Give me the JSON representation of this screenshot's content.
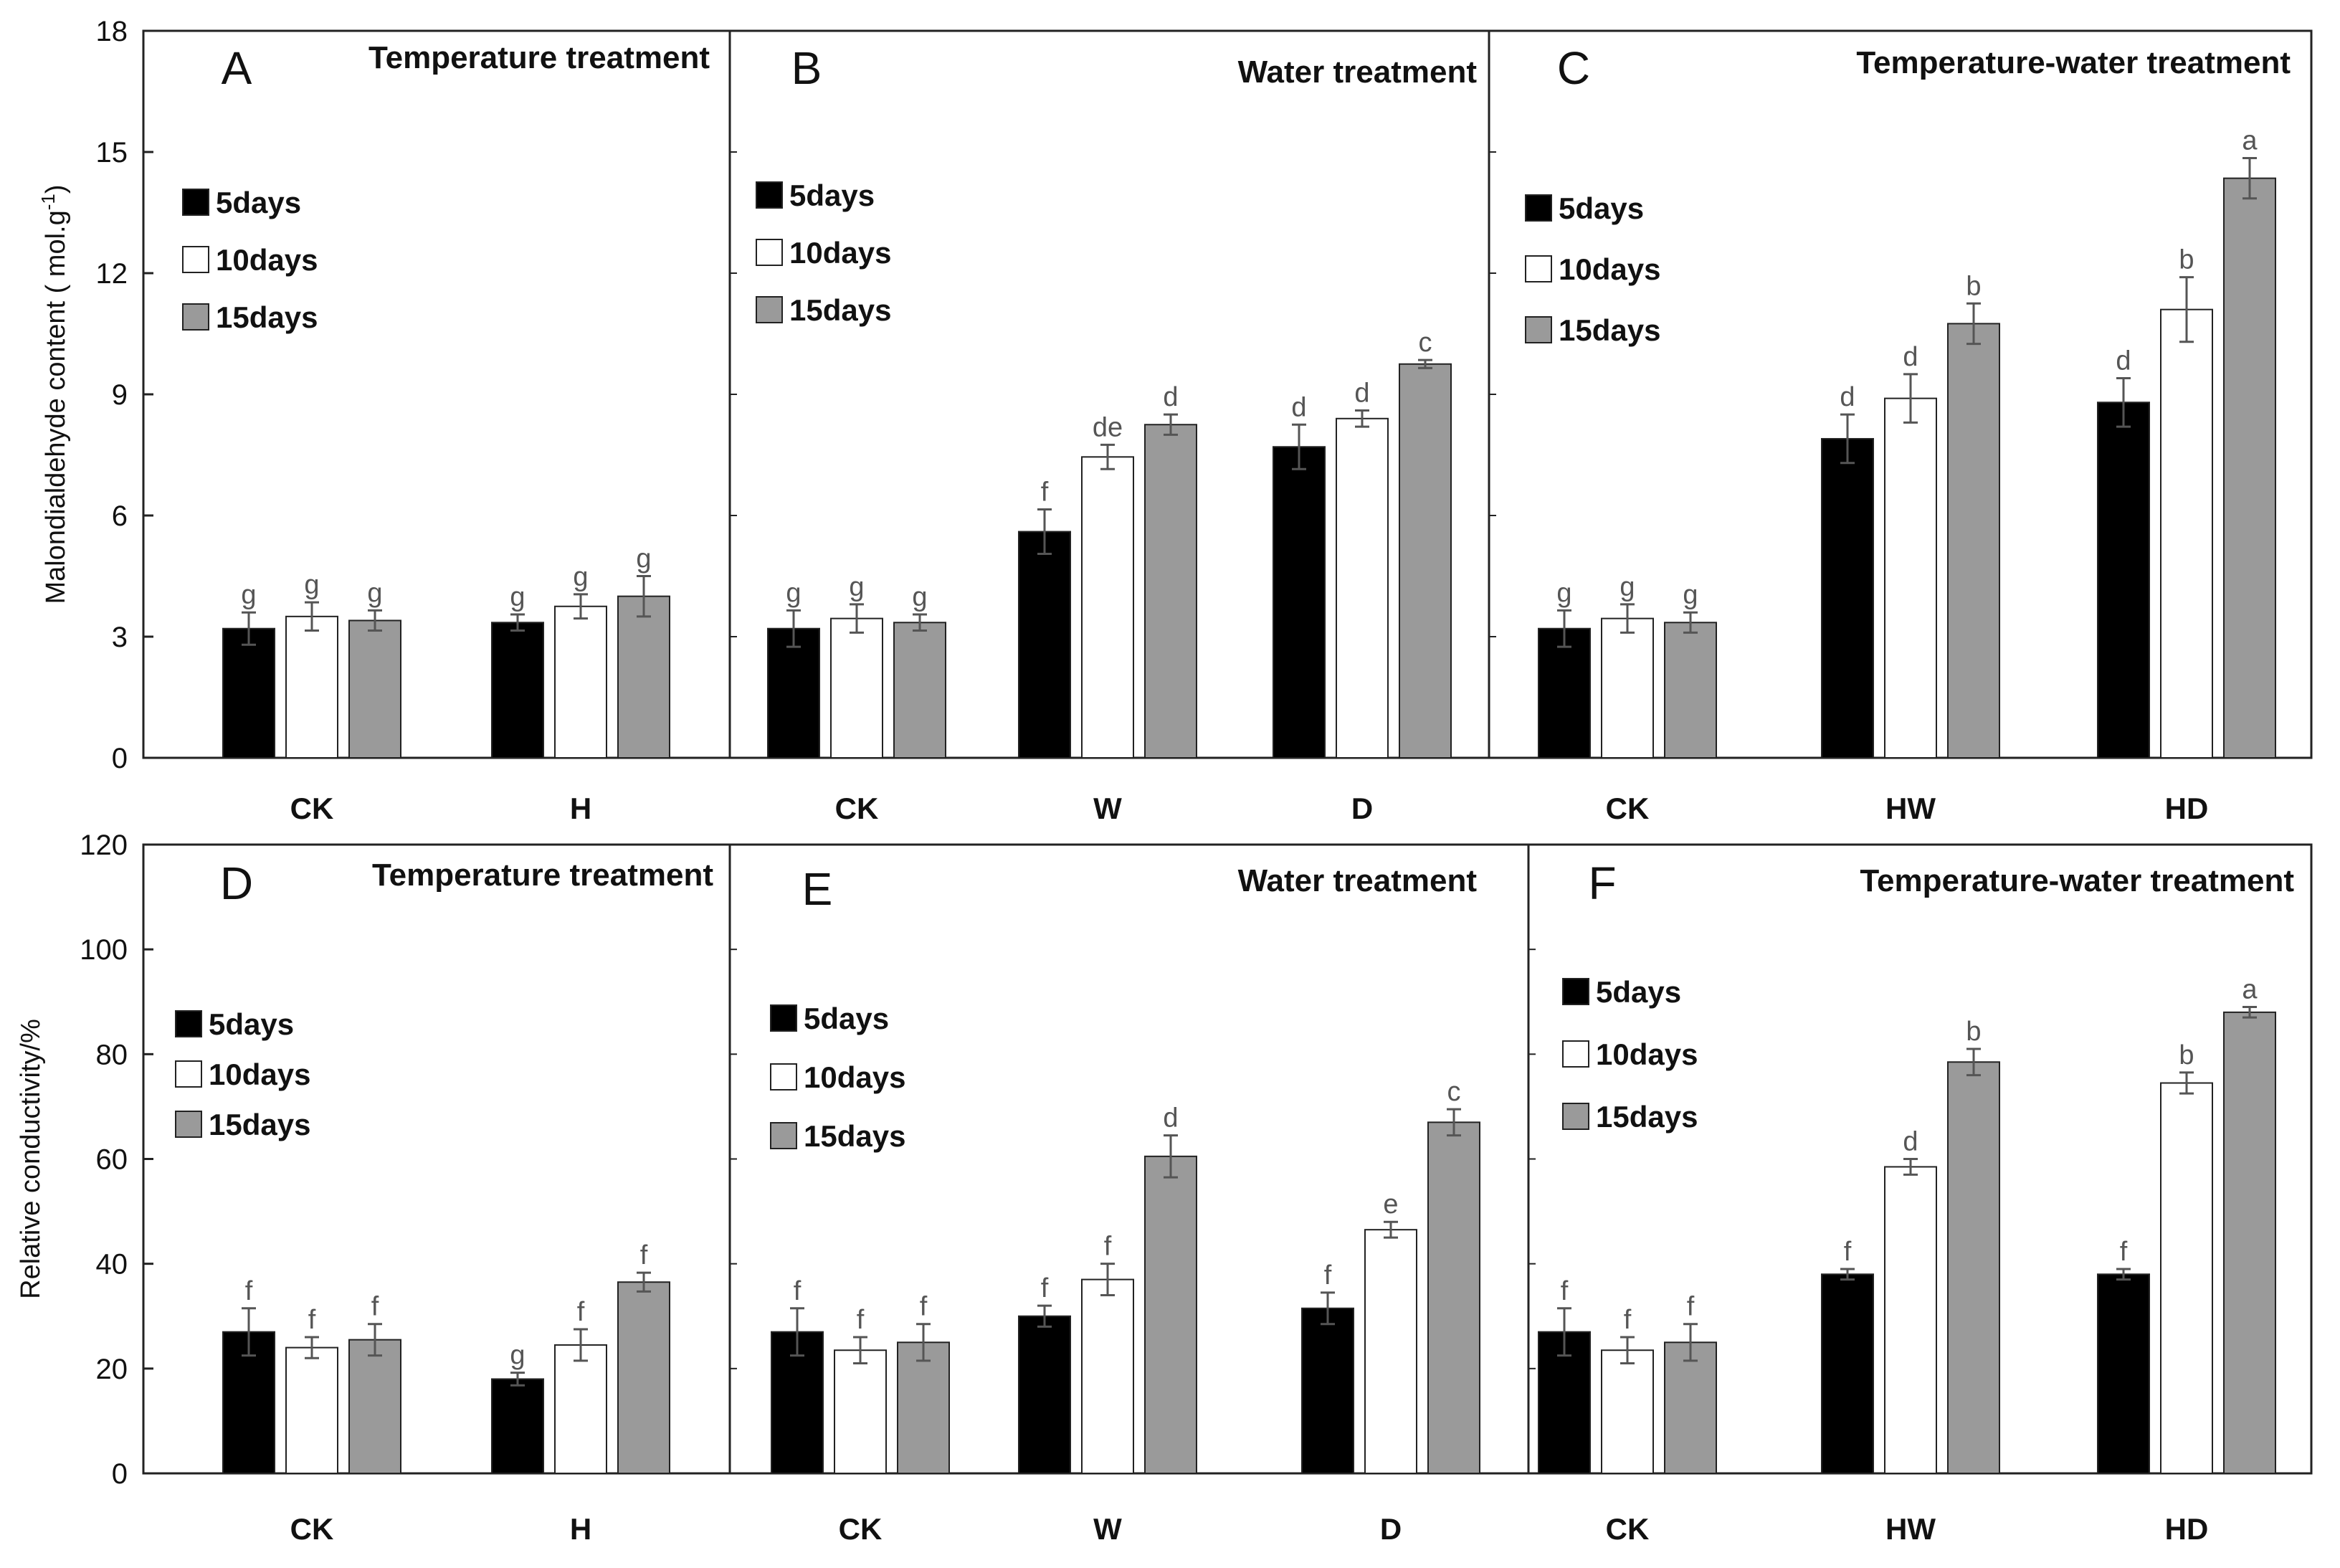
{
  "colors": {
    "5days": "#000000",
    "10days": "#ffffff",
    "15days": "#9a9a9a",
    "error": "#555555",
    "sig": "#555555"
  },
  "legend": [
    "5days",
    "10days",
    "15days"
  ],
  "chart_data": [
    {
      "type": "bar",
      "panel": "A",
      "row": "top",
      "title": "Temperature treatment",
      "ylabel": "Malondialdehyde content ( mol.g-1)",
      "ylabel_main": "Malondialdehyde content ( mol.g",
      "ylabel_sup": "-1",
      "ylabel_end": ")",
      "ylim": [
        0,
        18
      ],
      "yticks": [
        "0",
        "3",
        "6",
        "9",
        "12",
        "15",
        "18"
      ],
      "categories": [
        "CK",
        "H"
      ],
      "series": [
        {
          "name": "5days",
          "values": [
            3.2,
            3.35
          ],
          "errors": [
            0.4,
            0.2
          ],
          "labels": [
            "g",
            "g"
          ]
        },
        {
          "name": "10days",
          "values": [
            3.5,
            3.75
          ],
          "errors": [
            0.35,
            0.3
          ],
          "labels": [
            "g",
            "g"
          ]
        },
        {
          "name": "15days",
          "values": [
            3.4,
            4.0
          ],
          "errors": [
            0.25,
            0.5
          ],
          "labels": [
            "g",
            "g"
          ]
        }
      ]
    },
    {
      "type": "bar",
      "panel": "B",
      "row": "top",
      "title": "Water treatment",
      "ylim": [
        0,
        18
      ],
      "categories": [
        "CK",
        "W",
        "D"
      ],
      "series": [
        {
          "name": "5days",
          "values": [
            3.2,
            5.6,
            7.7
          ],
          "errors": [
            0.45,
            0.55,
            0.55
          ],
          "labels": [
            "g",
            "f",
            "d"
          ]
        },
        {
          "name": "10days",
          "values": [
            3.45,
            7.45,
            8.4
          ],
          "errors": [
            0.35,
            0.3,
            0.2
          ],
          "labels": [
            "g",
            "de",
            "d"
          ]
        },
        {
          "name": "15days",
          "values": [
            3.35,
            8.25,
            9.75
          ],
          "errors": [
            0.2,
            0.25,
            0.1
          ],
          "labels": [
            "g",
            "d",
            "c"
          ]
        }
      ]
    },
    {
      "type": "bar",
      "panel": "C",
      "row": "top",
      "title": "Temperature-water treatment",
      "ylim": [
        0,
        18
      ],
      "categories": [
        "CK",
        "HW",
        "HD"
      ],
      "series": [
        {
          "name": "5days",
          "values": [
            3.2,
            7.9,
            8.8
          ],
          "errors": [
            0.45,
            0.6,
            0.6
          ],
          "labels": [
            "g",
            "d",
            "d"
          ]
        },
        {
          "name": "10days",
          "values": [
            3.45,
            8.9,
            11.1
          ],
          "errors": [
            0.35,
            0.6,
            0.8
          ],
          "labels": [
            "g",
            "d",
            "b"
          ]
        },
        {
          "name": "15days",
          "values": [
            3.35,
            10.75,
            14.35
          ],
          "errors": [
            0.25,
            0.5,
            0.5
          ],
          "labels": [
            "g",
            "b",
            "a"
          ]
        }
      ]
    },
    {
      "type": "bar",
      "panel": "D",
      "row": "bottom",
      "title": "Temperature treatment",
      "ylabel": "Relative conductivity/%",
      "ylim": [
        0,
        120
      ],
      "yticks": [
        "0",
        "20",
        "40",
        "60",
        "80",
        "100",
        "120"
      ],
      "categories": [
        "CK",
        "H"
      ],
      "series": [
        {
          "name": "5days",
          "values": [
            27.0,
            18.0
          ],
          "errors": [
            4.5,
            1.2
          ],
          "labels": [
            "f",
            "g"
          ]
        },
        {
          "name": "10days",
          "values": [
            24.0,
            24.5
          ],
          "errors": [
            2.0,
            3.0
          ],
          "labels": [
            "f",
            "f"
          ]
        },
        {
          "name": "15days",
          "values": [
            25.5,
            36.5
          ],
          "errors": [
            3.0,
            1.8
          ],
          "labels": [
            "f",
            "f"
          ]
        }
      ]
    },
    {
      "type": "bar",
      "panel": "E",
      "row": "bottom",
      "title": "Water treatment",
      "ylim": [
        0,
        120
      ],
      "categories": [
        "CK",
        "W",
        "D"
      ],
      "series": [
        {
          "name": "5days",
          "values": [
            27.0,
            30.0,
            31.5
          ],
          "errors": [
            4.5,
            2.0,
            3.0
          ],
          "labels": [
            "f",
            "f",
            "f"
          ]
        },
        {
          "name": "10days",
          "values": [
            23.5,
            37.0,
            46.5
          ],
          "errors": [
            2.5,
            3.0,
            1.5
          ],
          "labels": [
            "f",
            "f",
            "e"
          ]
        },
        {
          "name": "15days",
          "values": [
            25.0,
            60.5,
            67.0
          ],
          "errors": [
            3.5,
            4.0,
            2.5
          ],
          "labels": [
            "f",
            "d",
            "c"
          ]
        }
      ]
    },
    {
      "type": "bar",
      "panel": "F",
      "row": "bottom",
      "title": "Temperature-water treatment",
      "ylim": [
        0,
        120
      ],
      "categories": [
        "CK",
        "HW",
        "HD"
      ],
      "series": [
        {
          "name": "5days",
          "values": [
            27.0,
            38.0,
            38.0
          ],
          "errors": [
            4.5,
            1.0,
            1.0
          ],
          "labels": [
            "f",
            "f",
            "f"
          ]
        },
        {
          "name": "10days",
          "values": [
            23.5,
            58.5,
            74.5
          ],
          "errors": [
            2.5,
            1.5,
            2.0
          ],
          "labels": [
            "f",
            "d",
            "b"
          ]
        },
        {
          "name": "15days",
          "values": [
            25.0,
            78.5,
            88.0
          ],
          "errors": [
            3.5,
            2.5,
            1.0
          ],
          "labels": [
            "f",
            "b",
            "a"
          ]
        }
      ]
    }
  ]
}
